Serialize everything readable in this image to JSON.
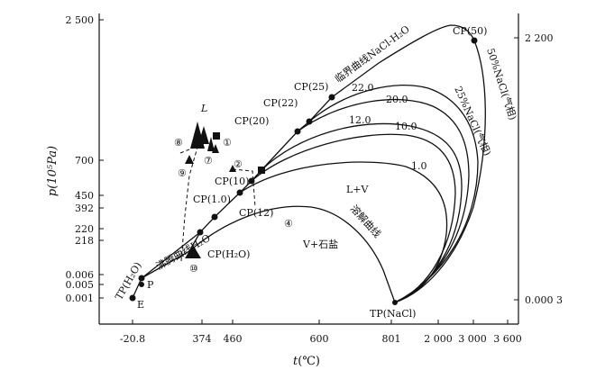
{
  "chart_data": {
    "type": "line",
    "title": "",
    "xlabel_var": "t",
    "xlabel_unit": "(℃)",
    "ylabel": "p(10⁵Pa)",
    "x_ticks": [
      "-20.8",
      "374",
      "460",
      "600",
      "801",
      "2 000",
      "3 000",
      "3 600"
    ],
    "y_ticks_left": [
      "2 500",
      "700",
      "450",
      "392",
      "220",
      "218",
      "0.006",
      "0.005",
      "0.001"
    ],
    "y_ticks_right": [
      "2 200",
      "0.000 3"
    ],
    "labels": {
      "critical_curve": "临界曲线NaCl-H₂O",
      "boiling_curve": "沸腾曲线H₂O",
      "dissolution_curve": "溶解曲线",
      "solid_field": "V+石盐",
      "two_phase_field": "L+V",
      "liquid": "L",
      "vapor_50": "50%NaCl(气相)",
      "vapor_25": "25%NaCl(气相)",
      "tp_nacl": "TP(NaCl)",
      "tp_h2o": "TP(H₂O)",
      "cp_h2o": "CP(H₂O)",
      "point_p": "P",
      "point_e": "E"
    },
    "critical_points": [
      {
        "label": "CP(1.0)",
        "wt_pct_nacl": 1.0
      },
      {
        "label": "CP(10)",
        "wt_pct_nacl": 10
      },
      {
        "label": "CP(12)",
        "wt_pct_nacl": 12
      },
      {
        "label": "CP(20)",
        "wt_pct_nacl": 20
      },
      {
        "label": "CP(22)",
        "wt_pct_nacl": 22
      },
      {
        "label": "CP(25)",
        "wt_pct_nacl": 25
      },
      {
        "label": "CP(50)",
        "wt_pct_nacl": 50
      }
    ],
    "isopleth_labels": [
      "22.0",
      "20.0",
      "12.0",
      "10.0",
      "1.0"
    ],
    "sample_markers": [
      "①",
      "②",
      "④",
      "⑦",
      "⑧",
      "⑨",
      "⑩"
    ]
  }
}
